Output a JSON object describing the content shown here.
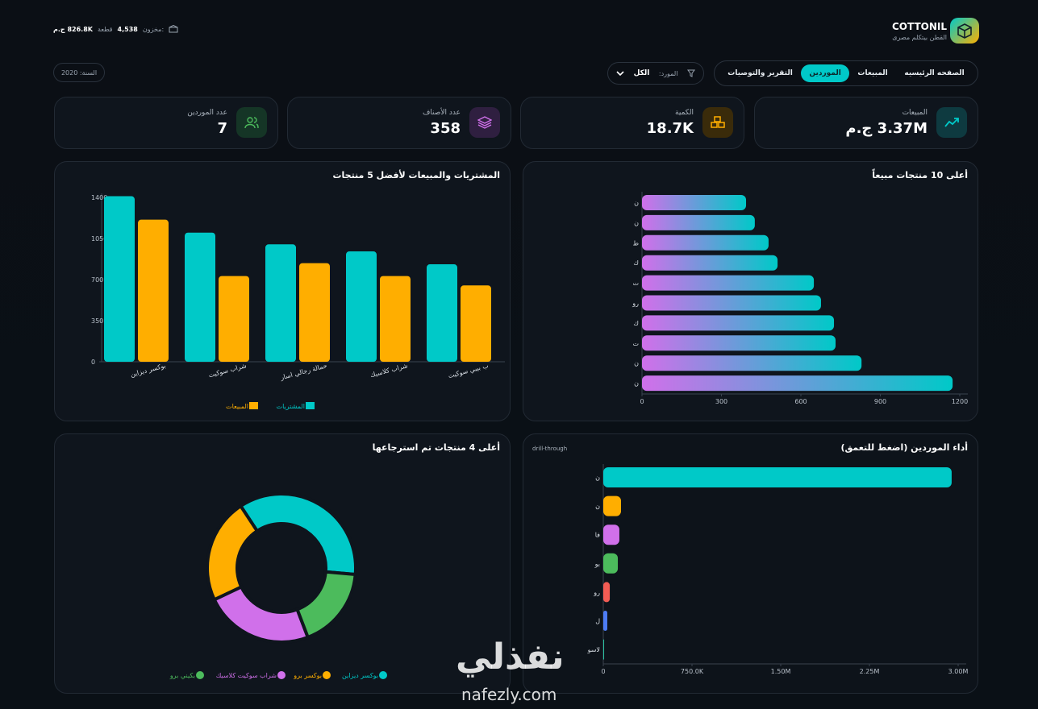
{
  "header": {
    "brand": "COTTONIL",
    "tagline": "القطن بيتكلم مصرى",
    "inventory_label": "مخزون:",
    "inventory_quantity": "4,538",
    "inventory_unit": "قطعة",
    "inventory_value": "826.8K ج.م"
  },
  "nav": {
    "tabs": [
      "الصفحه الرئيسيه",
      "المبيعات",
      "الموردين",
      "التقرير والتوصيات"
    ],
    "active": 2,
    "filter_label": "المورد:",
    "filter_value": "الكل",
    "year": "السنة: 2020"
  },
  "kpis": [
    {
      "label": "المبيعات",
      "value": "3.37M ج.م"
    },
    {
      "label": "الكمية",
      "value": "18.7K"
    },
    {
      "label": "عدد الأصناف",
      "value": "358"
    },
    {
      "label": "عدد الموردين",
      "value": "7"
    }
  ],
  "chart_data": [
    {
      "type": "bar",
      "title": "المشتريات والمبيعات لأفضل 5 منتجات",
      "categories": [
        "بوكسر ديزاين",
        "شراب سوكيت",
        "حمالة رجالي اسار",
        "شراب كلاسيك",
        "ب بيبي سوكيت"
      ],
      "series": [
        {
          "name": "المشتريات",
          "color": "#00c9c8",
          "values": [
            1410,
            1100,
            1000,
            940,
            830
          ]
        },
        {
          "name": "المبيعات",
          "color": "#ffae00",
          "values": [
            1210,
            730,
            840,
            730,
            650
          ]
        }
      ],
      "ylim": [
        0,
        1400
      ],
      "yticks": [
        0,
        350,
        700,
        1050,
        1400
      ]
    },
    {
      "type": "hbar",
      "title": "أعلى 10 منتجات مبيعاً",
      "categories": [
        "ن",
        "ن",
        "ط",
        "ك",
        "ت",
        "رو",
        "ك",
        "ت",
        "ن",
        "ن"
      ],
      "values": [
        393,
        426,
        478,
        512,
        649,
        676,
        725,
        731,
        829,
        1173
      ],
      "gradient": [
        "#d070ea",
        "#00c9c8"
      ],
      "xlim": [
        0,
        1200
      ],
      "xticks": [
        0,
        300,
        600,
        900,
        1200
      ]
    },
    {
      "type": "donut",
      "title": "أعلى 4 منتجات تم استرجاعها",
      "categories": [
        "بوكسر ديزاين",
        "بوكسر برو",
        "شراب سوكيت كلاسيك",
        "بكيني برو"
      ],
      "values": [
        36,
        23,
        24,
        18
      ],
      "colors": [
        "#00c9c8",
        "#ffae00",
        "#d070ea",
        "#4cbb5c"
      ]
    },
    {
      "type": "hbar",
      "title": "أداء الموردين (اضغط للتعمق)",
      "annotation": "drill-through",
      "categories": [
        "ن",
        "ن",
        "فا",
        "بو",
        "رو",
        "ل",
        "لاسو"
      ],
      "values": [
        2945000,
        150000,
        136000,
        123000,
        55000,
        34000,
        7000
      ],
      "colors": [
        "#00c9c8",
        "#ffae00",
        "#d070ea",
        "#4cbb5c",
        "#f25c54",
        "#4d7cf5",
        "#2bbfa0"
      ],
      "xlim": [
        0,
        3000000
      ],
      "xticks": [
        0,
        {
          "value": 750000,
          "label": "750.0K"
        },
        {
          "value": 1500000,
          "label": "1.50M"
        },
        {
          "value": 2250000,
          "label": "2.25M"
        },
        {
          "value": 3000000,
          "label": "3.00M"
        }
      ]
    }
  ],
  "watermark": {
    "logo": "نفذلي",
    "site": "nafezly.com"
  }
}
